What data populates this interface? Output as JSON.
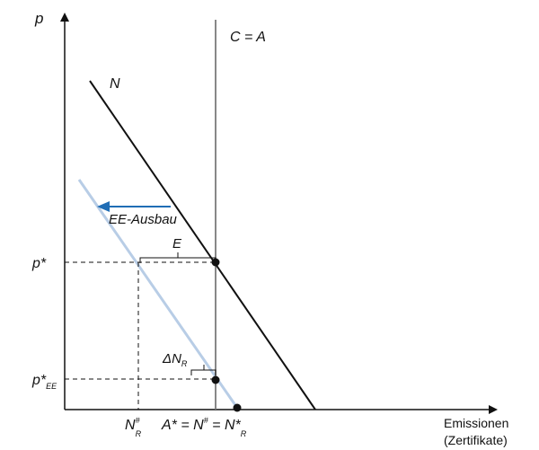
{
  "diagram": {
    "axis_y_label": "p",
    "axis_x_label_line1": "Emissionen",
    "axis_x_label_line2": "(Zertifikate)",
    "cap_label": "C = A",
    "demand_label": "N",
    "shift_label": "EE-Ausbau",
    "gap_label": "E",
    "delta_label_main": "ΔN",
    "delta_label_sub": "R",
    "price_label_main": "p*",
    "price_ee_main": "p*",
    "price_ee_sub": "EE",
    "nr_label_main": "N",
    "nr_label_sup": "#",
    "nr_label_sub": "R",
    "equil_label_main": "A* = N",
    "equil_label_sup1": "#",
    "equil_label_mid": " = N*",
    "equil_label_sub": "R",
    "colors": {
      "axes": "#111111",
      "cap_line": "#7a7a7a",
      "demand_line": "#111111",
      "shifted_demand": "#b8cde6",
      "shift_arrow": "#1f6db5"
    }
  }
}
